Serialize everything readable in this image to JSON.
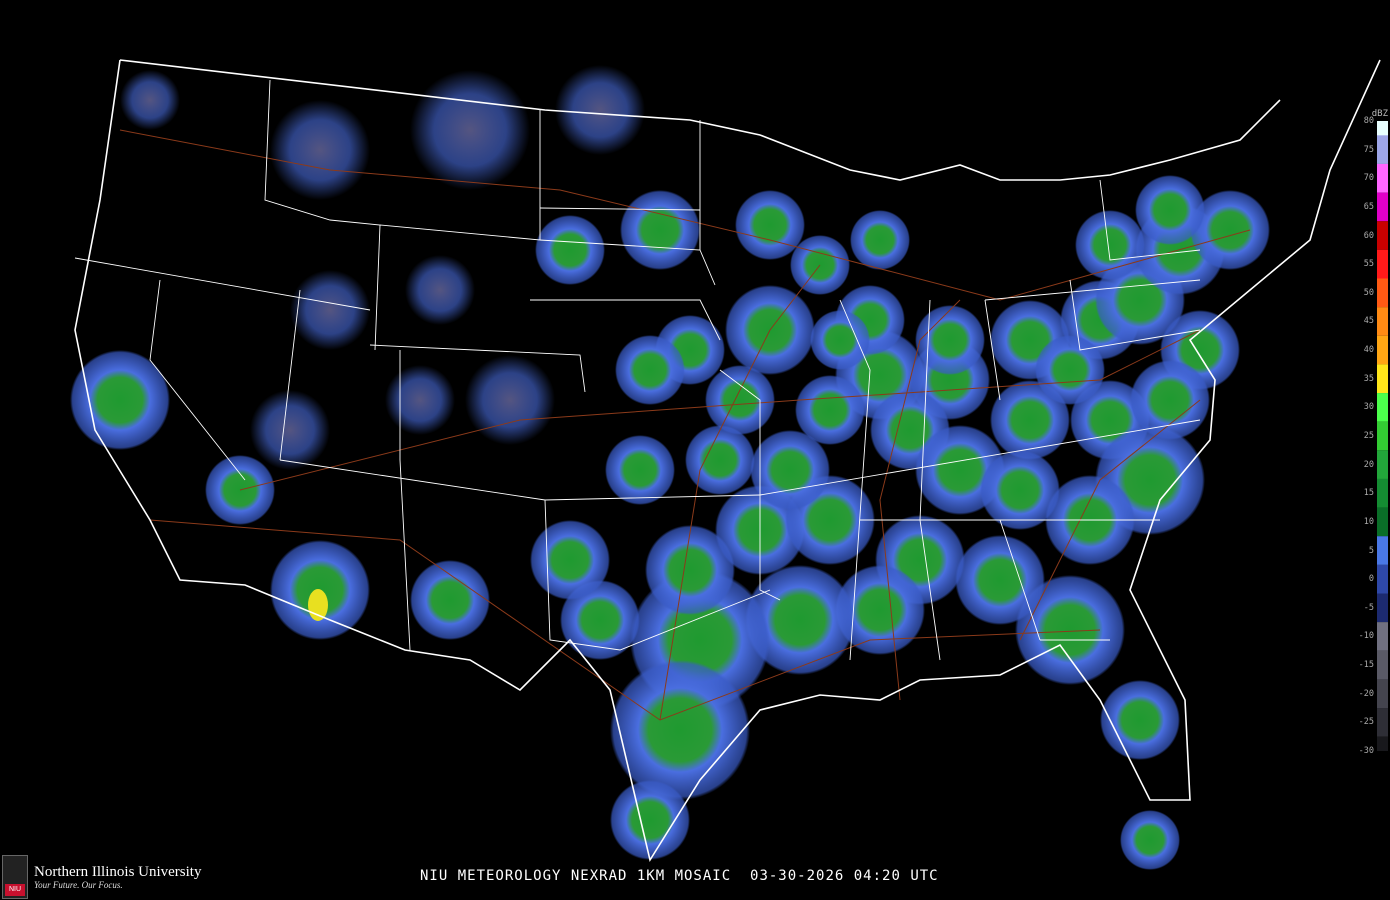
{
  "caption": {
    "title": "NIU METEOROLOGY NEXRAD 1KM MOSAIC",
    "date": "03-30-2026",
    "time": "04:20 UTC"
  },
  "logo": {
    "name": "Northern Illinois University",
    "tagline": "Your Future. Our Focus.",
    "mark": "NIU"
  },
  "legend": {
    "unit": "dBZ",
    "ticks": [
      "80",
      "75",
      "70",
      "65",
      "60",
      "55",
      "50",
      "45",
      "40",
      "35",
      "30",
      "25",
      "20",
      "15",
      "10",
      "5",
      "0",
      "-5",
      "-10",
      "-15",
      "-20",
      "-25",
      "-30"
    ],
    "colors": {
      "80": "#e8ffff",
      "75": "#9ea6e8",
      "70": "#ff66ff",
      "65": "#e000c8",
      "60": "#c80000",
      "55": "#ff1a1a",
      "50": "#ff5a14",
      "45": "#ff8a14",
      "40": "#ffa614",
      "35": "#ffe61a",
      "30": "#4cff4c",
      "25": "#33cc33",
      "20": "#22a63a",
      "15": "#148c32",
      "10": "#0a6e28",
      "5": "#4a78e6",
      "0": "#2e48a8",
      "-5": "#1c2a70",
      "-10": "#707080",
      "-15": "#5a5a66",
      "-20": "#44444e",
      "-25": "#2e2e36",
      "-30": "#18181c"
    }
  },
  "map_colors": {
    "background": "#000000",
    "borders": "#ffffff",
    "highways": "#8b3a1a",
    "light_echo": "#4a6ee0",
    "moderate_echo": "#1f9a30",
    "strong_echo": "#e8e020"
  }
}
